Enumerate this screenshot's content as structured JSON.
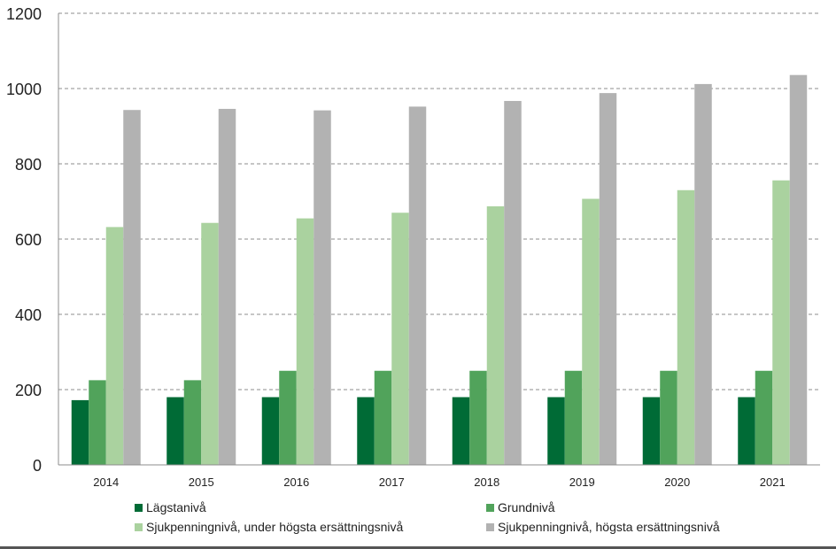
{
  "chart_data": {
    "type": "bar",
    "title": "",
    "xlabel": "",
    "ylabel": "",
    "ylim": [
      0,
      1200
    ],
    "yticks": [
      0,
      200,
      400,
      600,
      800,
      1000,
      1200
    ],
    "grid": true,
    "legend_position": "bottom",
    "categories": [
      "2014",
      "2015",
      "2016",
      "2017",
      "2018",
      "2019",
      "2020",
      "2021"
    ],
    "series": [
      {
        "name": "Lägstanivå",
        "color": "#006b36",
        "values": [
          172,
          180,
          180,
          180,
          180,
          180,
          180,
          180
        ]
      },
      {
        "name": "Grundnivå",
        "color": "#51a35b",
        "values": [
          225,
          225,
          250,
          250,
          250,
          250,
          250,
          250
        ]
      },
      {
        "name": "Sjukpenningnivå, under högsta ersättningsnivå",
        "color": "#aad29f",
        "values": [
          632,
          643,
          655,
          670,
          687,
          707,
          730,
          756
        ]
      },
      {
        "name": "Sjukpenningnivå, högsta ersättningsnivå",
        "color": "#b2b2b2",
        "values": [
          943,
          946,
          942,
          952,
          967,
          988,
          1012,
          1036
        ]
      }
    ]
  }
}
